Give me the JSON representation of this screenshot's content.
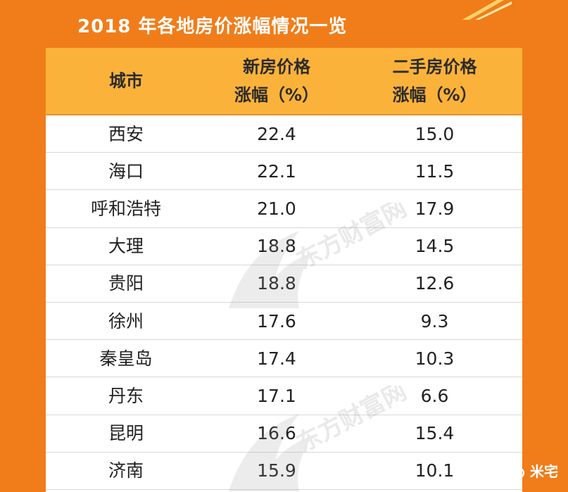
{
  "title": "2018 年各地房价涨幅情况一览",
  "chart_data": {
    "type": "table",
    "columns": [
      {
        "id": "city",
        "lines": [
          "城市"
        ]
      },
      {
        "id": "new",
        "lines": [
          "新房价格",
          "涨幅（%）"
        ]
      },
      {
        "id": "used",
        "lines": [
          "二手房价格",
          "涨幅（%）"
        ]
      }
    ],
    "rows": [
      {
        "city": "西安",
        "new": "22.4",
        "used": "15.0"
      },
      {
        "city": "海口",
        "new": "22.1",
        "used": "11.5"
      },
      {
        "city": "呼和浩特",
        "new": "21.0",
        "used": "17.9"
      },
      {
        "city": "大理",
        "new": "18.8",
        "used": "14.5"
      },
      {
        "city": "贵阳",
        "new": "18.8",
        "used": "12.6"
      },
      {
        "city": "徐州",
        "new": "17.6",
        "used": "9.3"
      },
      {
        "city": "秦皇岛",
        "new": "17.4",
        "used": "10.3"
      },
      {
        "city": "丹东",
        "new": "17.1",
        "used": "6.6"
      },
      {
        "city": "昆明",
        "new": "16.6",
        "used": "15.4"
      },
      {
        "city": "济南",
        "new": "15.9",
        "used": "10.1"
      }
    ]
  },
  "watermark_text": "东方财富网",
  "badge": {
    "label": "米宅",
    "icon": "wechat-icon"
  },
  "colors": {
    "background": "#f07d1a",
    "header": "#fbb23a",
    "text": "#222222"
  }
}
